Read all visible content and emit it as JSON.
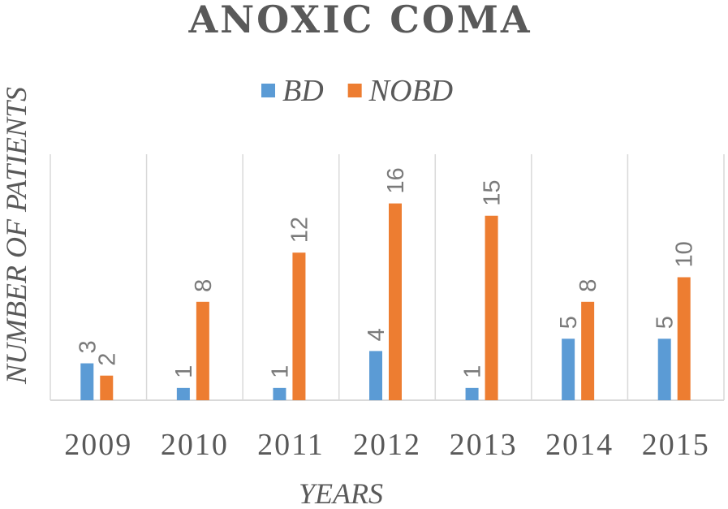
{
  "chart_data": {
    "type": "bar",
    "title": "ANOXIC COMA",
    "xlabel": "YEARS",
    "ylabel": "NUMBER OF PATIENTS",
    "categories": [
      "2009",
      "2010",
      "2011",
      "2012",
      "2013",
      "2014",
      "2015"
    ],
    "series": [
      {
        "name": "BD",
        "color": "#5b9bd5",
        "values": [
          3,
          1,
          1,
          4,
          1,
          5,
          5
        ]
      },
      {
        "name": "NOBD",
        "color": "#ed7d31",
        "values": [
          2,
          8,
          12,
          16,
          15,
          8,
          10
        ]
      }
    ],
    "ylim": [
      0,
      20
    ],
    "grid": "vertical-category-separators",
    "legend": "top-center",
    "data_labels": true
  }
}
